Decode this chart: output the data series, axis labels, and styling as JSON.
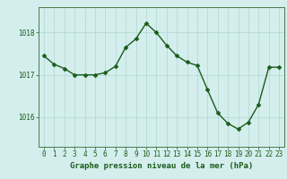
{
  "x": [
    0,
    1,
    2,
    3,
    4,
    5,
    6,
    7,
    8,
    9,
    10,
    11,
    12,
    13,
    14,
    15,
    16,
    17,
    18,
    19,
    20,
    21,
    22,
    23
  ],
  "y": [
    1017.45,
    1017.25,
    1017.15,
    1017.0,
    1017.0,
    1017.0,
    1017.05,
    1017.2,
    1017.65,
    1017.85,
    1018.22,
    1018.0,
    1017.7,
    1017.45,
    1017.3,
    1017.22,
    1016.65,
    1016.1,
    1015.85,
    1015.72,
    1015.88,
    1016.3,
    1017.18,
    1017.18
  ],
  "line_color": "#1a5c1a",
  "marker": "D",
  "marker_size": 2.5,
  "linewidth": 1.0,
  "bg_color": "#d4eeed",
  "grid_color": "#b0d8d0",
  "xlabel": "Graphe pression niveau de la mer (hPa)",
  "xlabel_fontsize": 6.5,
  "xlabel_color": "#1a5c1a",
  "yticks": [
    1016,
    1017,
    1018
  ],
  "ylim": [
    1015.3,
    1018.6
  ],
  "xlim": [
    -0.5,
    23.5
  ],
  "xtick_labels": [
    "0",
    "1",
    "2",
    "3",
    "4",
    "5",
    "6",
    "7",
    "8",
    "9",
    "10",
    "11",
    "12",
    "13",
    "14",
    "15",
    "16",
    "17",
    "18",
    "19",
    "20",
    "21",
    "22",
    "23"
  ],
  "tick_color": "#1a5c1a",
  "tick_fontsize": 5.5,
  "axis_color": "#4a7a4a",
  "bottom_bar_color": "#2a6a2a",
  "bottom_bar_height": 0.13
}
